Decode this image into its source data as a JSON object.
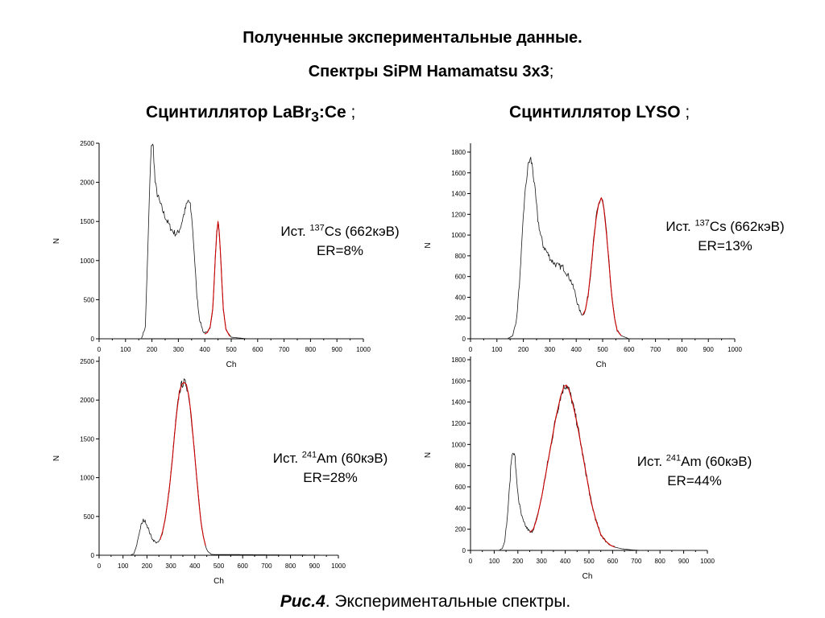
{
  "title": "Полученные экспериментальные данные.",
  "subtitle_bold": "Спектры SiPM Hamamatsu 3x3",
  "subtitle_tail": ";",
  "columns": {
    "left": {
      "label_a": "Сцинтиллятор LaBr",
      "label_sub": "3",
      "label_b": ":Ce",
      "label_tail": " ;"
    },
    "right": {
      "label_a": "Сцинтиллятор LYSO",
      "label_tail": " ;"
    }
  },
  "caption": {
    "bold": "Рис.4",
    "text": ". Экспериментальные спектры."
  },
  "colors": {
    "measured": "#1a1a1a",
    "fit": "#cc0000",
    "axis": "#000000"
  },
  "chart_data": [
    {
      "type": "line",
      "id": "labr-cs",
      "xlabel": "Ch",
      "ylabel": "N",
      "xlim": [
        0,
        1000
      ],
      "ylim": [
        0,
        2500
      ],
      "xticks": [
        0,
        100,
        200,
        300,
        400,
        500,
        600,
        700,
        800,
        900,
        1000
      ],
      "yticks": [
        0,
        500,
        1000,
        1500,
        2000,
        2500
      ],
      "annotation": {
        "src": "Ист. ",
        "iso": "137",
        "el": "Cs (662кэВ)",
        "er": "ER=8%"
      },
      "series": [
        {
          "role": "measured",
          "x": [
            0,
            160,
            175,
            185,
            192,
            198,
            205,
            212,
            220,
            232,
            245,
            258,
            270,
            280,
            290,
            300,
            310,
            320,
            330,
            338,
            345,
            352,
            360,
            370,
            380,
            395,
            410,
            420,
            430,
            435,
            440,
            445,
            450,
            455,
            460,
            465,
            470,
            480,
            500,
            560,
            1000
          ],
          "y": [
            0,
            0,
            150,
            1200,
            2000,
            2500,
            2450,
            2000,
            1850,
            1720,
            1600,
            1500,
            1420,
            1370,
            1340,
            1360,
            1450,
            1580,
            1700,
            1770,
            1700,
            1500,
            1100,
            550,
            250,
            80,
            80,
            150,
            380,
            700,
            1050,
            1350,
            1500,
            1350,
            1050,
            700,
            380,
            120,
            20,
            0,
            0
          ]
        },
        {
          "role": "fit",
          "x": [
            400,
            410,
            420,
            430,
            435,
            440,
            445,
            450,
            455,
            460,
            465,
            470,
            480,
            495
          ],
          "y": [
            60,
            80,
            150,
            380,
            700,
            1050,
            1350,
            1500,
            1350,
            1050,
            700,
            380,
            120,
            30
          ]
        }
      ]
    },
    {
      "type": "line",
      "id": "lyso-cs",
      "xlabel": "Ch",
      "ylabel": "N",
      "xlim": [
        0,
        1000
      ],
      "ylim": [
        0,
        1800
      ],
      "xticks": [
        0,
        100,
        200,
        300,
        400,
        500,
        600,
        700,
        800,
        900,
        1000
      ],
      "yticks": [
        0,
        200,
        400,
        600,
        800,
        1000,
        1200,
        1400,
        1600,
        1800
      ],
      "annotation": {
        "src": "Ист. ",
        "iso": "137",
        "el": "Cs (662кэВ)",
        "er": "ER=13%"
      },
      "series": [
        {
          "role": "measured",
          "x": [
            0,
            140,
            160,
            175,
            190,
            200,
            210,
            220,
            228,
            235,
            245,
            255,
            265,
            275,
            290,
            305,
            320,
            335,
            350,
            365,
            380,
            395,
            405,
            415,
            425,
            435,
            445,
            455,
            465,
            475,
            485,
            495,
            500,
            505,
            515,
            525,
            535,
            545,
            555,
            570,
            600,
            1000
          ],
          "y": [
            0,
            0,
            30,
            200,
            700,
            1200,
            1500,
            1700,
            1730,
            1650,
            1400,
            1150,
            1000,
            900,
            830,
            760,
            720,
            700,
            690,
            630,
            560,
            450,
            340,
            260,
            230,
            280,
            420,
            650,
            920,
            1150,
            1300,
            1360,
            1320,
            1250,
            1000,
            700,
            400,
            200,
            80,
            30,
            0,
            0
          ]
        },
        {
          "role": "fit",
          "x": [
            425,
            435,
            445,
            455,
            465,
            475,
            485,
            495,
            500,
            505,
            515,
            525,
            535,
            545,
            555,
            570
          ],
          "y": [
            230,
            280,
            420,
            650,
            920,
            1150,
            1300,
            1360,
            1320,
            1250,
            1000,
            700,
            400,
            200,
            80,
            30
          ]
        }
      ]
    },
    {
      "type": "line",
      "id": "labr-am",
      "xlabel": "Ch",
      "ylabel": "N",
      "xlim": [
        0,
        1000
      ],
      "ylim": [
        0,
        2500
      ],
      "xticks": [
        0,
        100,
        200,
        300,
        400,
        500,
        600,
        700,
        800,
        900,
        1000
      ],
      "yticks": [
        0,
        500,
        1000,
        1500,
        2000,
        2500
      ],
      "annotation": {
        "src": "Ист. ",
        "iso": "241",
        "el": "Am (60кэВ)",
        "er": "ER=28%"
      },
      "series": [
        {
          "role": "measured",
          "x": [
            0,
            130,
            145,
            155,
            165,
            175,
            185,
            195,
            205,
            215,
            225,
            235,
            245,
            255,
            265,
            275,
            285,
            295,
            305,
            315,
            325,
            335,
            345,
            355,
            365,
            375,
            385,
            395,
            405,
            415,
            425,
            435,
            445,
            455,
            470,
            1000
          ],
          "y": [
            0,
            0,
            20,
            100,
            250,
            380,
            450,
            430,
            350,
            260,
            200,
            170,
            160,
            200,
            300,
            450,
            650,
            900,
            1200,
            1550,
            1850,
            2100,
            2200,
            2230,
            2200,
            2050,
            1800,
            1450,
            1100,
            750,
            450,
            250,
            120,
            50,
            10,
            0
          ]
        },
        {
          "role": "fit",
          "x": [
            255,
            265,
            275,
            285,
            295,
            305,
            315,
            325,
            335,
            345,
            355,
            365,
            375,
            385,
            395,
            405,
            415,
            425,
            435,
            445
          ],
          "y": [
            200,
            300,
            450,
            650,
            900,
            1200,
            1550,
            1850,
            2100,
            2200,
            2230,
            2200,
            2050,
            1800,
            1450,
            1100,
            750,
            450,
            250,
            120
          ]
        }
      ]
    },
    {
      "type": "line",
      "id": "lyso-am",
      "xlabel": "Ch",
      "ylabel": "N",
      "xlim": [
        0,
        1000
      ],
      "ylim": [
        0,
        1800
      ],
      "xticks": [
        0,
        100,
        200,
        300,
        400,
        500,
        600,
        700,
        800,
        900,
        1000
      ],
      "yticks": [
        0,
        200,
        400,
        600,
        800,
        1000,
        1200,
        1400,
        1600,
        1800
      ],
      "annotation": {
        "src": "Ист. ",
        "iso": "241",
        "el": "Am (60кэВ)",
        "er": "ER=44%"
      },
      "series": [
        {
          "role": "measured",
          "x": [
            0,
            120,
            135,
            145,
            155,
            165,
            172,
            180,
            188,
            195,
            205,
            215,
            225,
            235,
            245,
            255,
            265,
            280,
            300,
            320,
            340,
            360,
            380,
            395,
            405,
            415,
            430,
            450,
            470,
            490,
            510,
            530,
            550,
            570,
            590,
            610,
            640,
            680,
            720,
            1000
          ],
          "y": [
            0,
            0,
            20,
            100,
            300,
            600,
            850,
            950,
            870,
            650,
            450,
            330,
            260,
            220,
            190,
            165,
            200,
            300,
            500,
            750,
            1000,
            1250,
            1450,
            1550,
            1560,
            1520,
            1400,
            1200,
            950,
            700,
            450,
            280,
            150,
            90,
            50,
            30,
            15,
            5,
            0,
            0
          ]
        },
        {
          "role": "fit",
          "x": [
            250,
            265,
            280,
            300,
            320,
            340,
            360,
            380,
            395,
            405,
            415,
            430,
            450,
            470,
            490,
            510,
            530,
            550,
            570,
            590,
            610
          ],
          "y": [
            170,
            200,
            300,
            500,
            750,
            1000,
            1250,
            1450,
            1550,
            1560,
            1520,
            1400,
            1200,
            950,
            700,
            450,
            280,
            150,
            90,
            50,
            30
          ]
        }
      ]
    }
  ]
}
